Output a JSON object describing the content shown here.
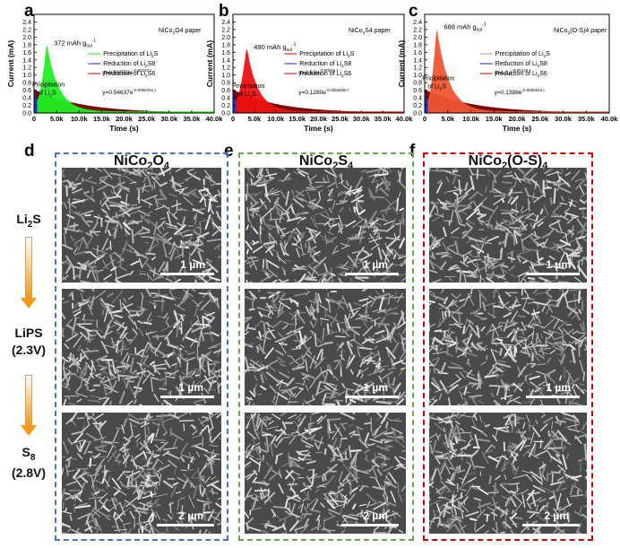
{
  "panels": {
    "a": {
      "letter": "a"
    },
    "b": {
      "letter": "b"
    },
    "c": {
      "letter": "c"
    },
    "d": {
      "letter": "d"
    },
    "e": {
      "letter": "e"
    },
    "f": {
      "letter": "f"
    }
  },
  "chart_data": [
    {
      "type": "area",
      "panel": "a",
      "material_label": "NiCo2O4 paper",
      "capacity_label": "372 mAh g",
      "capacity_sup": "-1",
      "capacity_sub": "sul",
      "precip_label_line1": "Pricipitation",
      "precip_label_line2": "of Li2S",
      "xlabel": "Time (s)",
      "ylabel": "Current (mA)",
      "xlim": [
        0,
        40000
      ],
      "ylim": [
        0,
        2.6
      ],
      "xticks": [
        "0",
        "5.0k",
        "10.0k",
        "15.0k",
        "20.0k",
        "25.0k",
        "30.0k",
        "35.0k",
        "40.0k"
      ],
      "yticks": [
        "0.0",
        "0.2",
        "0.4",
        "0.6",
        "0.8",
        "1.0",
        "1.2",
        "1.4",
        "1.6",
        "1.8",
        "2.0",
        "2.2",
        "2.4"
      ],
      "legend": [
        {
          "name": "Precipitation of Li2S",
          "color": "#22dd22"
        },
        {
          "name": "Reduction of Li2S8",
          "color": "#2222cc"
        },
        {
          "name": "Reduction of Li2S6",
          "color": "#cc0000"
        }
      ],
      "eq1": "y=0.96503e",
      "eq1_exp": "-0.00147 t",
      "eq2": "y=0.54637e",
      "eq2_exp": "-0.0000761 t",
      "peak_x": 2800,
      "peak_y": 1.85,
      "start_y": 0.62,
      "colors": {
        "precip": "#22ee22",
        "base": "#7a0a0a"
      }
    },
    {
      "type": "area",
      "panel": "b",
      "material_label": "NiCo2S4 paper",
      "capacity_label": "490 mAh g",
      "capacity_sup": "-1",
      "capacity_sub": "sul",
      "precip_label_line1": "Pricipitation",
      "precip_label_line2": "of Li2S",
      "xlabel": "Time (s)",
      "ylabel": "Current (mA)",
      "xlim": [
        0,
        40000
      ],
      "ylim": [
        0,
        2.6
      ],
      "xticks": [
        "0",
        "5.0k",
        "10.0k",
        "15.0k",
        "20.0k",
        "25.0k",
        "30.0k",
        "35.0k",
        "40.0k"
      ],
      "yticks": [
        "0.0",
        "0.2",
        "0.4",
        "0.6",
        "0.8",
        "1.0",
        "1.2",
        "1.4",
        "1.6",
        "1.8",
        "2.0",
        "2.2",
        "2.4"
      ],
      "legend": [
        {
          "name": "Precipitation of Li2S",
          "color": "#cc0000"
        },
        {
          "name": "Reduction of Li2S8",
          "color": "#2222cc"
        },
        {
          "name": "Reduction of Li2S6",
          "color": "#cc0000"
        }
      ],
      "eq1": "y=2.63e",
      "eq1_exp": "-0.00091 t",
      "eq2": "y=0.1280e",
      "eq2_exp": "-0.0000408 t",
      "peak_x": 3200,
      "peak_y": 1.75,
      "start_y": 0.55,
      "colors": {
        "precip": "#ee1111",
        "base": "#7a0a0a"
      }
    },
    {
      "type": "area",
      "panel": "c",
      "material_label": "NiCo2(O-S)4 paper",
      "capacity_label": "688 mAh g",
      "capacity_sup": "-1",
      "capacity_sub": "sul",
      "precip_label_line1": "Pricipitation",
      "precip_label_line2": "of Li2S",
      "xlabel": "Time (s)",
      "ylabel": "Current (mA)",
      "xlim": [
        0,
        40000
      ],
      "ylim": [
        0,
        2.6
      ],
      "xticks": [
        "0",
        "5.0k",
        "10.0k",
        "15.0k",
        "20.0k",
        "25.0k",
        "30.0k",
        "35.0k",
        "40.0k"
      ],
      "yticks": [
        "0.0",
        "0.2",
        "0.4",
        "0.6",
        "0.8",
        "1.0",
        "1.2",
        "1.4",
        "1.6",
        "1.8",
        "2.0",
        "2.2",
        "2.4"
      ],
      "legend": [
        {
          "name": "Precipitation of Li2S",
          "color": "#f08070"
        },
        {
          "name": "Reduction of Li2S8",
          "color": "#2222cc"
        },
        {
          "name": "Reduction of Li2S6",
          "color": "#cc0000"
        }
      ],
      "eq1": "y=1.1e",
      "eq1_exp": "-0.00148 t",
      "eq2": "y=0.1388e",
      "eq2_exp": "-0.0000343 t",
      "peak_x": 2600,
      "peak_y": 2.28,
      "start_y": 0.55,
      "colors": {
        "precip": "#ee5533",
        "base": "#7a0a0a"
      }
    }
  ],
  "columns": [
    {
      "title_main": "NiCo",
      "title_sub1": "2",
      "title_mid": "O",
      "title_sub2": "4",
      "title_end": "",
      "color": "#4a72c8"
    },
    {
      "title_main": "NiCo",
      "title_sub1": "2",
      "title_mid": "S",
      "title_sub2": "4",
      "title_end": "",
      "color": "#6aa84f"
    },
    {
      "title_main": "NiCo",
      "title_sub1": "2",
      "title_mid": "(O-S)",
      "title_sub2": "4",
      "title_end": "",
      "color": "#cc0000"
    }
  ],
  "stages": [
    {
      "line1": "Li",
      "sub": "2",
      "tail": "S",
      "line2": ""
    },
    {
      "line1": "LiPS",
      "sub": "",
      "tail": "",
      "line2": "(2.3V)"
    },
    {
      "line1": "S",
      "sub": "8",
      "tail": "",
      "line2": "(2.8V)"
    }
  ],
  "scalebars": {
    "row1": "1 µm",
    "row2": "1 µm",
    "row3": "2 µm"
  }
}
